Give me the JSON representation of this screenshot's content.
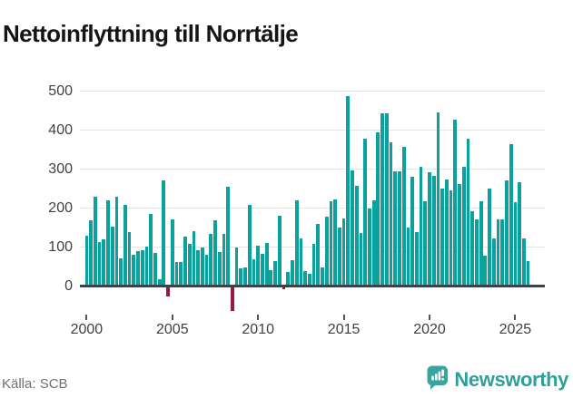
{
  "title": "Nettoinflyttning till Norrtälje",
  "source": "Källa: SCB",
  "logo": {
    "brand": "Newsworthy",
    "icon": "newsworthy-speech-bubble-bar-chart-icon"
  },
  "colors": {
    "bar_positive": "#0ba29d",
    "bar_negative": "#98184c",
    "grid": "#e4e4e4",
    "zero_axis": "#3b4248",
    "tick_label": "#3f3f3f",
    "title_text": "#151515",
    "source_text": "#707070",
    "brand_teal": "#2f9f9b"
  },
  "chart_data": {
    "type": "bar",
    "title": "Nettoinflyttning till Norrtälje",
    "xlabel": "",
    "ylabel": "",
    "x_start_year": 2000,
    "points_per_year": 4,
    "x_end_label": "2025 Q4",
    "grid": "horizontal",
    "legend": "none",
    "ylim": [
      -70,
      515
    ],
    "yticks": [
      0,
      100,
      200,
      300,
      400,
      500
    ],
    "xticks": [
      2000,
      2005,
      2010,
      2015,
      2020,
      2025
    ],
    "values": [
      130,
      170,
      230,
      113,
      121,
      222,
      153,
      230,
      71,
      210,
      139,
      82,
      90,
      92,
      103,
      186,
      86,
      18,
      272,
      -25,
      171,
      62,
      63,
      129,
      110,
      143,
      94,
      100,
      81,
      134,
      170,
      89,
      134,
      256,
      -62,
      101,
      47,
      50,
      209,
      70,
      105,
      83,
      112,
      43,
      64,
      182,
      -7,
      37,
      68,
      221,
      124,
      39,
      33,
      110,
      160,
      50,
      180,
      219,
      223,
      151,
      174,
      488,
      297,
      257,
      138,
      378,
      199,
      222,
      395,
      445,
      445,
      370,
      296,
      296,
      357,
      151,
      281,
      140,
      308,
      219,
      292,
      283,
      447,
      252,
      275,
      246,
      428,
      262,
      306,
      378,
      194,
      172,
      219,
      79,
      252,
      124,
      172,
      171,
      271,
      366,
      216,
      267,
      124,
      64
    ]
  }
}
